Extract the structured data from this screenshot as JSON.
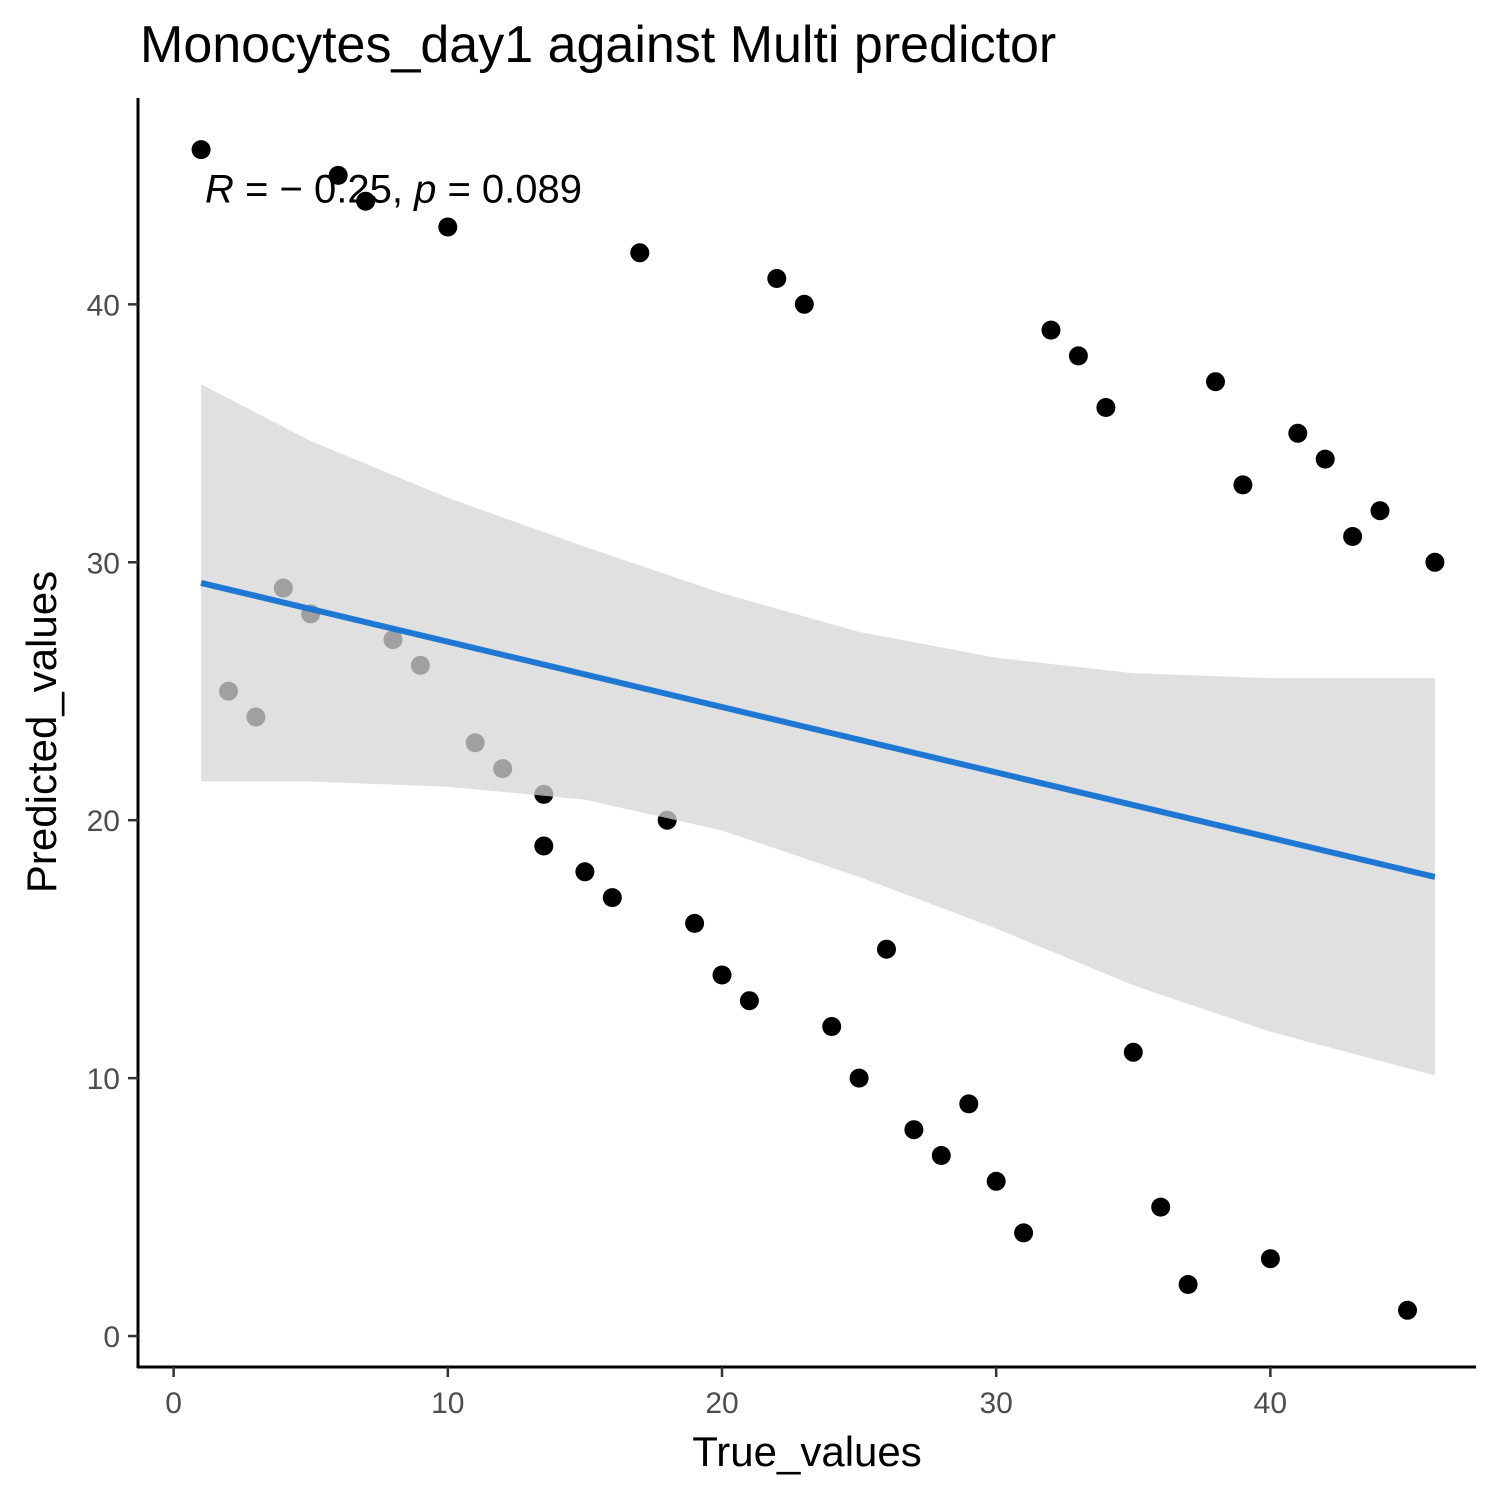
{
  "chart_data": {
    "type": "scatter",
    "title": "Monocytes_day1 against Multi predictor",
    "xlabel": "True_values",
    "ylabel": "Predicted_values",
    "xlim": [
      -1.3,
      47.5
    ],
    "ylim": [
      -1.2,
      48.0
    ],
    "xticks": [
      0,
      10,
      20,
      30,
      40
    ],
    "yticks": [
      0,
      10,
      20,
      30,
      40
    ],
    "grid": false,
    "legend": "none",
    "colors": {
      "points": "#000000",
      "fit_line": "#1f77d4",
      "band": "#d6d6d6",
      "axis": "#000000",
      "tick_label": "#4d4d4d"
    },
    "annotation": {
      "r_symbol": "R",
      "r_text": " = − 0.25, ",
      "p_symbol": "p",
      "p_text": " = 0.089",
      "x": 1,
      "y": 44.5
    },
    "points": [
      [
        1,
        46
      ],
      [
        2,
        25
      ],
      [
        3,
        24
      ],
      [
        4,
        29
      ],
      [
        5,
        28
      ],
      [
        6,
        45
      ],
      [
        7,
        44
      ],
      [
        8,
        27
      ],
      [
        9,
        26
      ],
      [
        10,
        43
      ],
      [
        11,
        23
      ],
      [
        12,
        22
      ],
      [
        13.5,
        21
      ],
      [
        13.5,
        19
      ],
      [
        15,
        18
      ],
      [
        16,
        17
      ],
      [
        17,
        42
      ],
      [
        18,
        20
      ],
      [
        19,
        16
      ],
      [
        20,
        14
      ],
      [
        21,
        13
      ],
      [
        22,
        41
      ],
      [
        23,
        40
      ],
      [
        24,
        12
      ],
      [
        25,
        10
      ],
      [
        26,
        15
      ],
      [
        27,
        8
      ],
      [
        28,
        7
      ],
      [
        29,
        9
      ],
      [
        30,
        6
      ],
      [
        31,
        4
      ],
      [
        32,
        39
      ],
      [
        33,
        38
      ],
      [
        34,
        36
      ],
      [
        35,
        11
      ],
      [
        36,
        5
      ],
      [
        37,
        2
      ],
      [
        38,
        37
      ],
      [
        39,
        33
      ],
      [
        40,
        3
      ],
      [
        41,
        35
      ],
      [
        42,
        34
      ],
      [
        43,
        31
      ],
      [
        44,
        32
      ],
      [
        45,
        1
      ],
      [
        46,
        30
      ]
    ],
    "fit_line": {
      "x": [
        1,
        46
      ],
      "y": [
        29.2,
        17.8
      ]
    },
    "confidence_band": {
      "x": [
        1,
        5,
        10,
        15,
        20,
        25,
        30,
        35,
        40,
        46
      ],
      "upper": [
        36.9,
        34.7,
        32.5,
        30.6,
        28.8,
        27.3,
        26.3,
        25.7,
        25.5,
        25.5
      ],
      "lower": [
        21.5,
        21.5,
        21.3,
        20.8,
        19.6,
        17.8,
        15.8,
        13.6,
        11.8,
        10.1
      ]
    }
  }
}
